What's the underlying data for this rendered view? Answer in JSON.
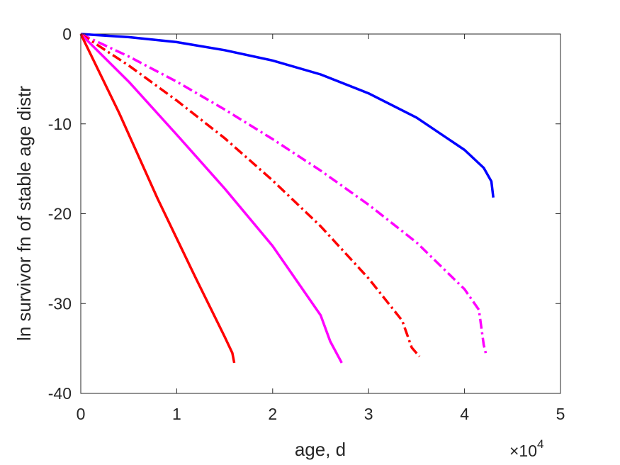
{
  "chart_data": {
    "type": "line",
    "title": "",
    "xlabel": "age, d",
    "ylabel": "ln survivor fn of stable age distr",
    "x_multiplier_label": {
      "base": "×10",
      "exponent": "4"
    },
    "xlim": [
      0,
      5
    ],
    "ylim": [
      -40,
      0
    ],
    "x_units_scale": 10000,
    "xticks": [
      0,
      1,
      2,
      3,
      4,
      5
    ],
    "xtick_labels": [
      "0",
      "1",
      "2",
      "3",
      "4",
      "5"
    ],
    "yticks": [
      0,
      -10,
      -20,
      -30,
      -40
    ],
    "ytick_labels": [
      "0",
      "-10",
      "-20",
      "-30",
      "-40"
    ],
    "grid": false,
    "legend": "none",
    "series": [
      {
        "color": "#0000ff",
        "dash": "solid",
        "x": [
          0,
          0.5,
          1.0,
          1.5,
          2.0,
          2.5,
          3.0,
          3.5,
          4.0,
          4.2,
          4.28,
          4.3
        ],
        "y": [
          0,
          -0.35,
          -0.9,
          -1.8,
          -2.95,
          -4.5,
          -6.6,
          -9.3,
          -12.9,
          -14.9,
          -16.4,
          -18.2
        ]
      },
      {
        "color": "#ff00ff",
        "dash": "dashdot",
        "x": [
          0,
          0.5,
          1.0,
          1.5,
          2.0,
          2.5,
          3.0,
          3.5,
          4.0,
          4.15,
          4.2,
          4.23
        ],
        "y": [
          0,
          -2.5,
          -5.3,
          -8.4,
          -11.7,
          -15.2,
          -19.0,
          -23.2,
          -28.4,
          -30.7,
          -34.6,
          -35.9
        ]
      },
      {
        "color": "#ff0000",
        "dash": "dashdot",
        "x": [
          0,
          0.5,
          1.0,
          1.5,
          2.0,
          2.5,
          3.0,
          3.35,
          3.45,
          3.53
        ],
        "y": [
          0,
          -3.5,
          -7.4,
          -11.6,
          -16.3,
          -21.4,
          -27.2,
          -31.9,
          -34.9,
          -35.9
        ]
      },
      {
        "color": "#ff00ff",
        "dash": "solid",
        "x": [
          0,
          0.5,
          1.0,
          1.5,
          2.0,
          2.5,
          2.6,
          2.68,
          2.72
        ],
        "y": [
          0,
          -5.3,
          -11.2,
          -17.2,
          -23.6,
          -31.3,
          -34.2,
          -35.8,
          -36.6
        ]
      },
      {
        "color": "#ff0000",
        "dash": "solid",
        "x": [
          0,
          0.4,
          0.8,
          1.2,
          1.5,
          1.58,
          1.6
        ],
        "y": [
          0,
          -8.8,
          -18.3,
          -27.2,
          -33.7,
          -35.5,
          -36.6
        ]
      }
    ]
  }
}
